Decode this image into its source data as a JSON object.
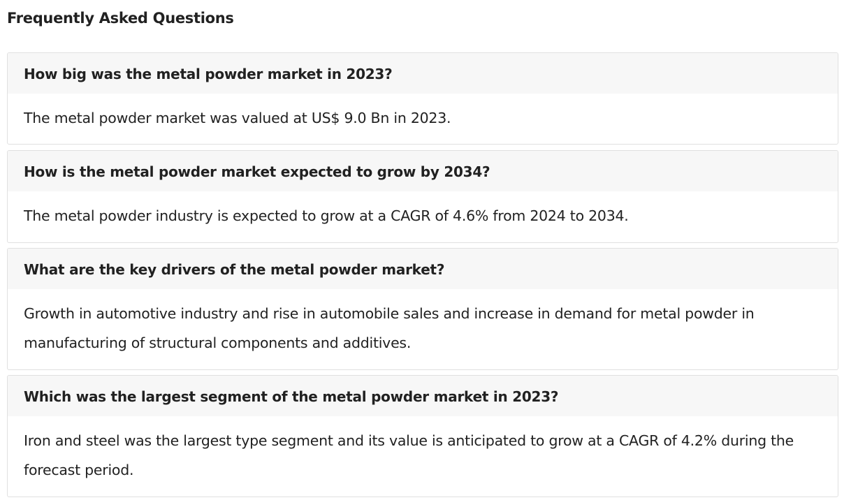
{
  "page_title": "Frequently Asked Questions",
  "faqs": [
    {
      "question": "How big was the metal powder market in 2023?",
      "answer": "The metal powder market was valued at US$ 9.0 Bn in 2023."
    },
    {
      "question": "How is the metal powder market expected to grow by 2034?",
      "answer": "The metal powder industry is expected to grow at a CAGR of 4.6% from 2024 to 2034."
    },
    {
      "question": "What are the key drivers of the metal powder market?",
      "answer": "Growth in automotive industry and rise in automobile sales and increase in demand for metal powder in manufacturing of structural components and additives."
    },
    {
      "question": "Which was the largest segment of the metal powder market in 2023?",
      "answer": "Iron and steel was the largest type segment and its value is anticipated to grow at a CAGR of 4.2% during the forecast period."
    }
  ]
}
